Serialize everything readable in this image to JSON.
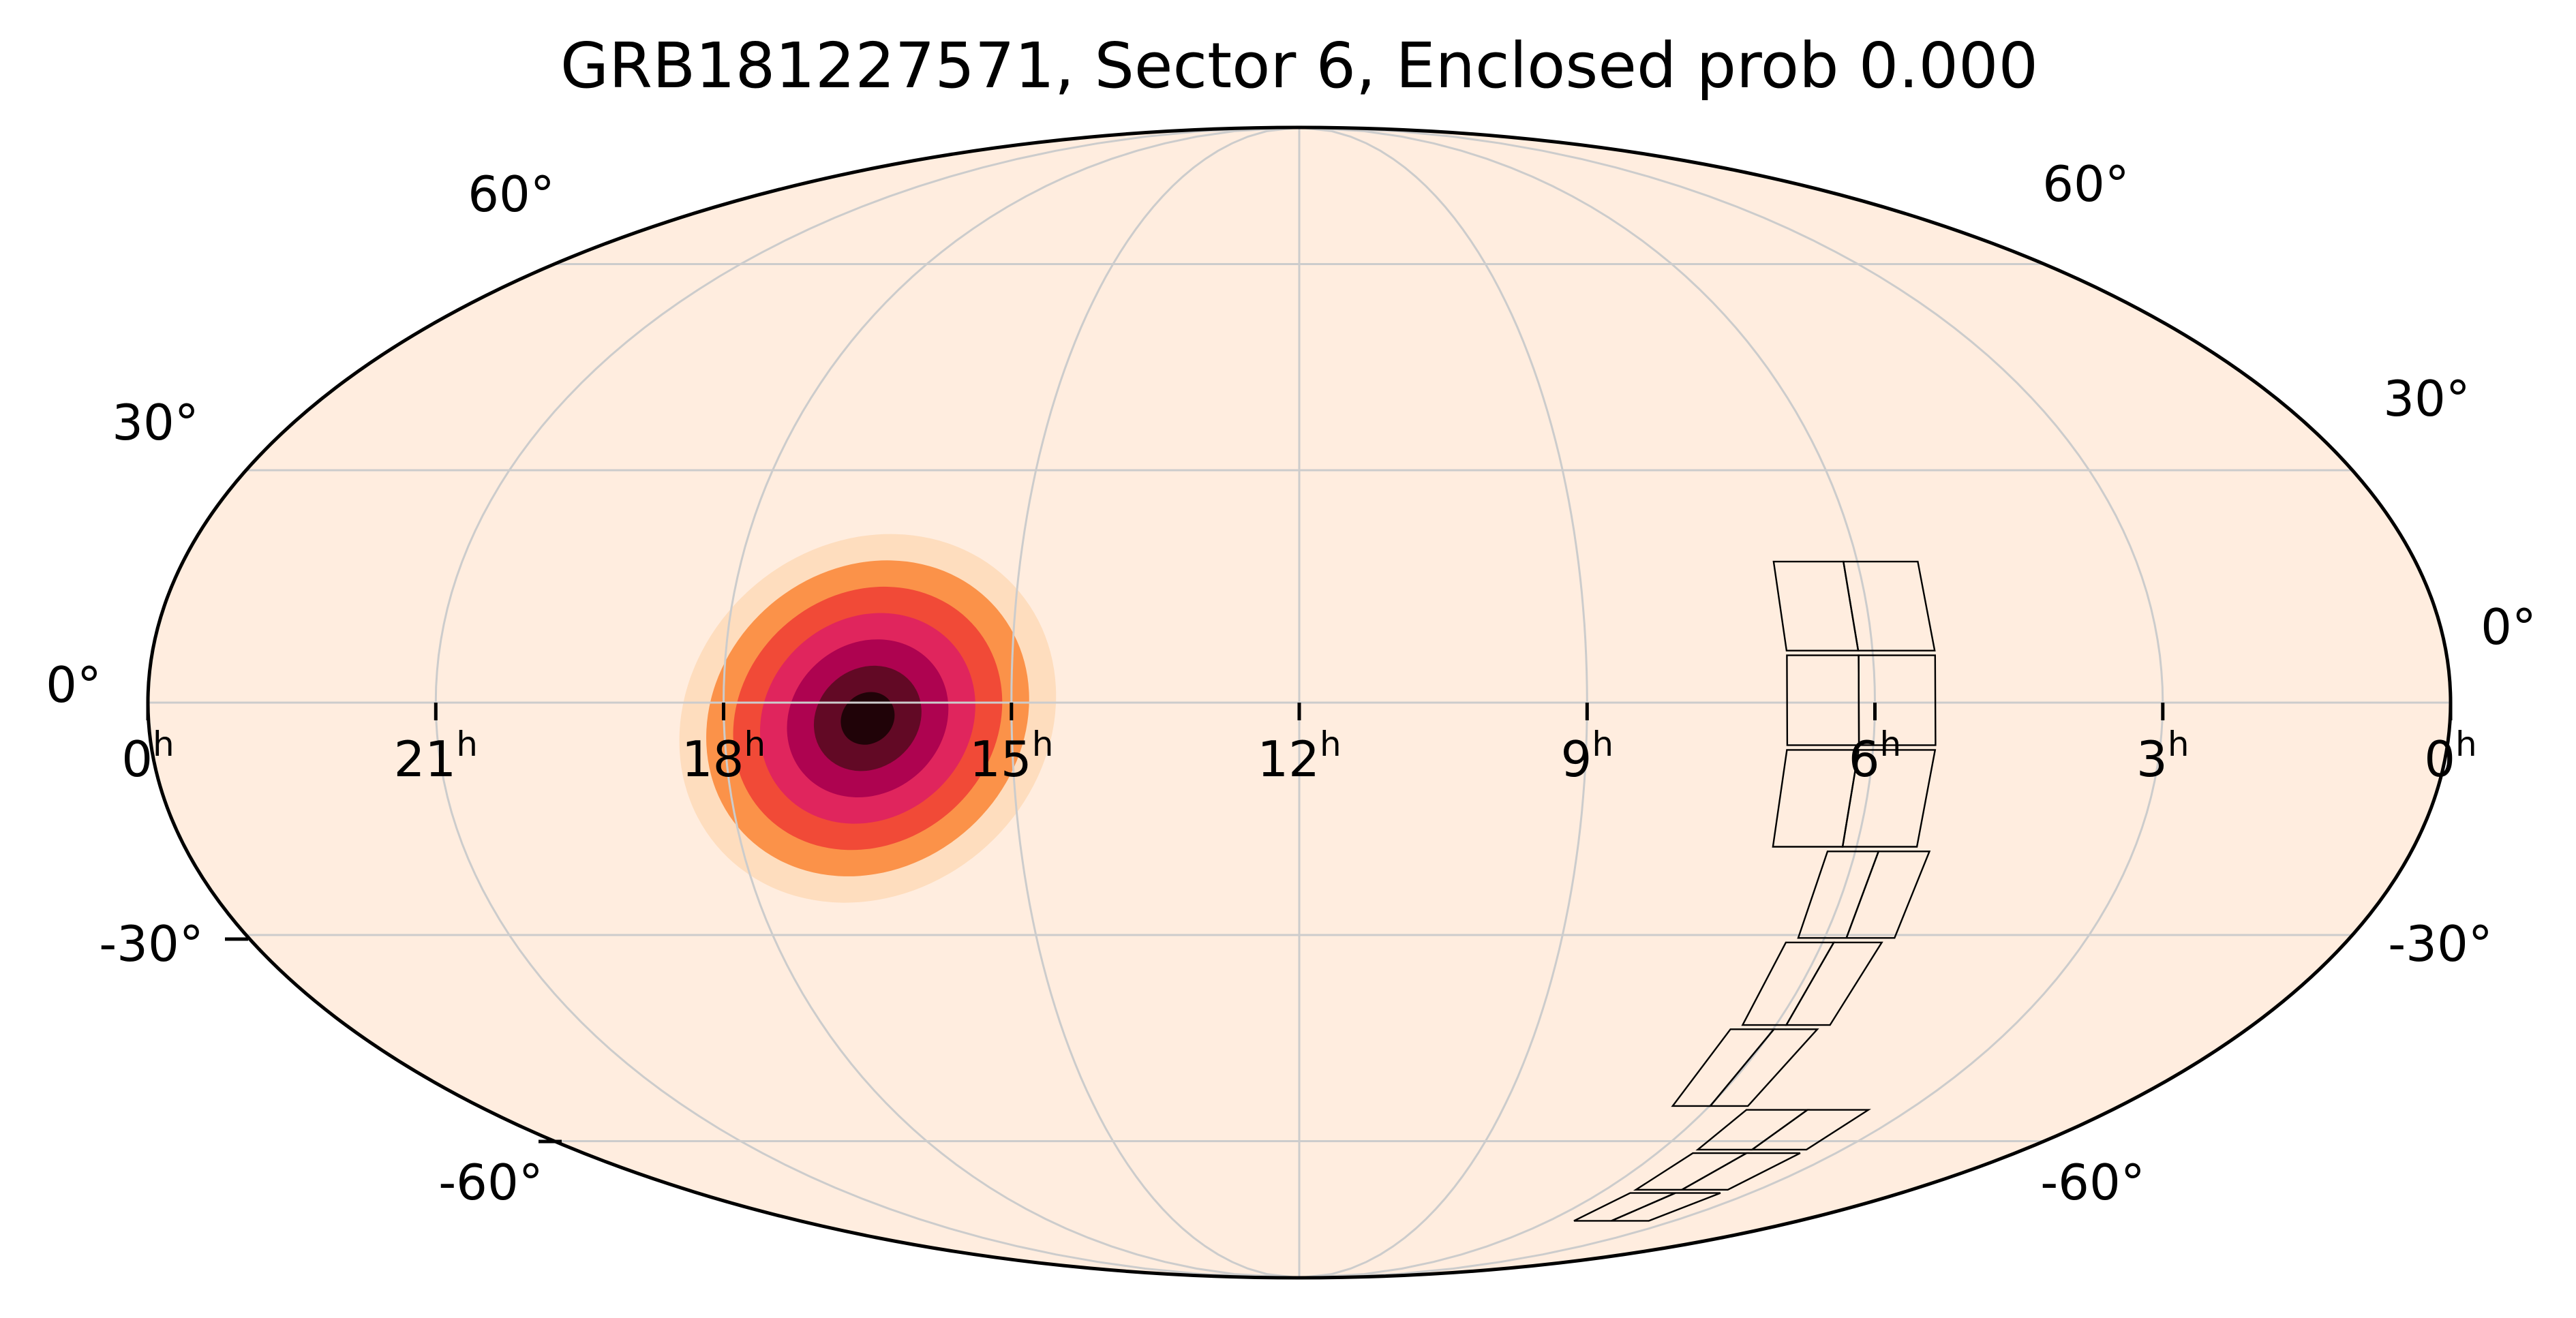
{
  "colors": {
    "background": "#ffeddf",
    "frame": "#000000",
    "grid": "#cccccc",
    "tile_outline": "#000000",
    "colormap": [
      "#ffeddf",
      "#fdd0a2",
      "#fb8a3c",
      "#ef4335",
      "#de2162",
      "#a8004f",
      "#5a0a20",
      "#1a0306"
    ]
  },
  "chart_data": {
    "type": "heatmap",
    "title": "GRB181227571, Sector 6, Enclosed prob 0.000",
    "projection": "mollweide",
    "ra_direction": "increasing-to-left",
    "grid": true,
    "x_ticks": [
      {
        "ra_h": 0,
        "label": "0",
        "sup": "h",
        "side": "left"
      },
      {
        "ra_h": 21,
        "label": "21",
        "sup": "h"
      },
      {
        "ra_h": 18,
        "label": "18",
        "sup": "h"
      },
      {
        "ra_h": 15,
        "label": "15",
        "sup": "h"
      },
      {
        "ra_h": 12,
        "label": "12",
        "sup": "h"
      },
      {
        "ra_h": 9,
        "label": "9",
        "sup": "h"
      },
      {
        "ra_h": 6,
        "label": "6",
        "sup": "h"
      },
      {
        "ra_h": 3,
        "label": "3",
        "sup": "h"
      },
      {
        "ra_h": 0,
        "label": "0",
        "sup": "h",
        "side": "right"
      }
    ],
    "y_ticks": [
      {
        "dec": 60,
        "label": "60°"
      },
      {
        "dec": 30,
        "label": "30°"
      },
      {
        "dec": 0,
        "label": "0°"
      },
      {
        "dec": -30,
        "label": "-30°"
      },
      {
        "dec": -60,
        "label": "-60°"
      }
    ],
    "probability_blob": {
      "center_ra_h": 16.5,
      "center_dec": -2,
      "sigma_major_deg": 13,
      "sigma_minor_deg": 8,
      "tilt_deg": 40
    },
    "sector": {
      "name": "Sector 6",
      "enclosed_prob": 0.0,
      "cameras": [
        {
          "ra_h": 6.18,
          "dec_start": 8
        },
        {
          "ra_h": 4.9,
          "dec_start": -32
        }
      ],
      "ccd_rows": [
        [
          [
            6.88,
            5.28
          ],
          [
            6.88,
            5.28
          ]
        ],
        [
          [
            6.72,
            5.35
          ],
          [
            6.72,
            5.35
          ]
        ]
      ]
    }
  }
}
